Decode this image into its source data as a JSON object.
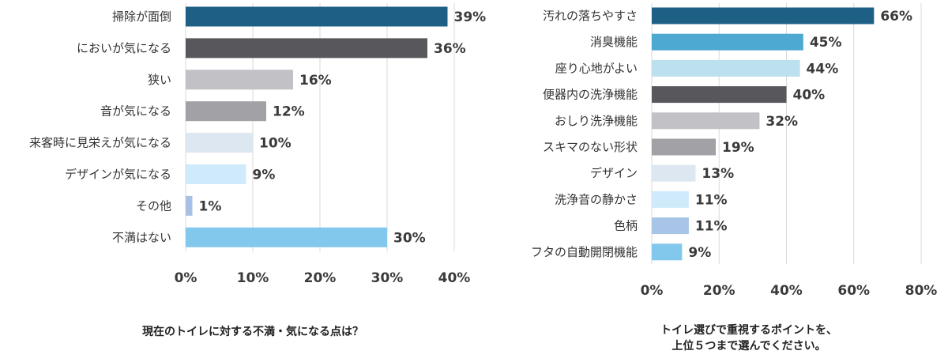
{
  "chart_data": [
    {
      "type": "bar",
      "orientation": "horizontal",
      "title": "現在のトイレに対する不満・気になる点は？",
      "categories": [
        "掃除が面倒",
        "においが気になる",
        "狭い",
        "音が気になる",
        "来客時に見栄えが気になる",
        "デザインが気になる",
        "その他",
        "不満はない"
      ],
      "values": [
        39,
        36,
        16,
        12,
        10,
        9,
        1,
        30
      ],
      "value_labels": [
        "39%",
        "36%",
        "16%",
        "12%",
        "10%",
        "9%",
        "1%",
        "30%"
      ],
      "colors": [
        "#1e5f86",
        "#57575c",
        "#c2c2c6",
        "#a2a2a6",
        "#dde7f1",
        "#cfeafb",
        "#a8c0e6",
        "#82c8ec"
      ],
      "xlim": [
        0,
        40
      ],
      "ticks": [
        "0%",
        "10%",
        "20%",
        "30%",
        "40%"
      ],
      "grid": true,
      "legend": "none"
    },
    {
      "type": "bar",
      "orientation": "horizontal",
      "title": "トイレ選びで重視するポイントを、\n上位５つまで選んでください。",
      "categories": [
        "汚れの落ちやすさ",
        "消臭機能",
        "座り心地がよい",
        "便器内の洗浄機能",
        "おしり洗浄機能",
        "スキマのない形状",
        "デザイン",
        "洗浄音の静かさ",
        "色柄",
        "フタの自動開閉機能"
      ],
      "values": [
        66,
        45,
        44,
        40,
        32,
        19,
        13,
        11,
        11,
        9
      ],
      "value_labels": [
        "66%",
        "45%",
        "44%",
        "40%",
        "32%",
        "19%",
        "13%",
        "11%",
        "11%",
        "9%"
      ],
      "colors": [
        "#1e5f86",
        "#4ea9d2",
        "#bde0ee",
        "#57575c",
        "#c2c2c6",
        "#a2a2a6",
        "#dde7f1",
        "#cfeafb",
        "#a8c4e6",
        "#82c8ec"
      ],
      "xlim": [
        0,
        80
      ],
      "ticks": [
        "0%",
        "20%",
        "40%",
        "60%",
        "80%"
      ],
      "grid": true,
      "legend": "none"
    }
  ]
}
